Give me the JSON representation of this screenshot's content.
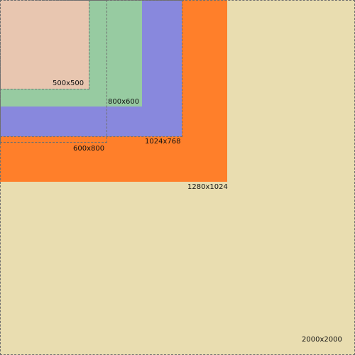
{
  "labels": {
    "r2000": "2000x2000",
    "r1280": "1280x1024",
    "r1024": "1024x768",
    "r800": "800x600",
    "r600": "600x800",
    "r500": "500x500"
  },
  "colors": {
    "background_2000": "#e9ddb0",
    "fill_1280": "#ff7f2a",
    "fill_1024": "#8888dd",
    "fill_800": "#97cba1",
    "fill_500": "#e8c6b0",
    "dashed_outline": "#6f6f6f"
  }
}
